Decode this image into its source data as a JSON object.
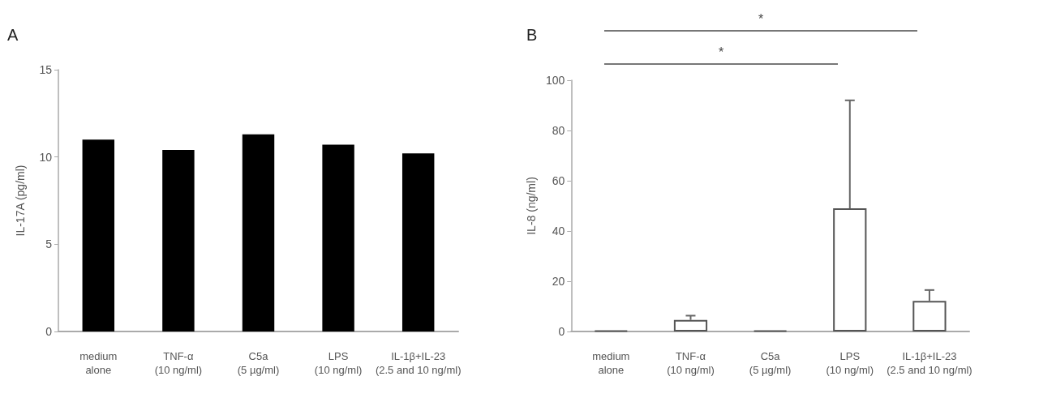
{
  "chart_data": [
    {
      "type": "bar",
      "title": "A",
      "ylabel": "IL-17A (pg/ml)",
      "categories": [
        "medium\nalone",
        "TNF-α\n(10 ng/ml)",
        "C5a\n(5 µg/ml)",
        "LPS\n(10 ng/ml)",
        "IL-1β+IL-23\n(2.5 and 10 ng/ml)"
      ],
      "values": [
        11.0,
        10.4,
        11.3,
        10.7,
        10.2
      ],
      "color": "#000000",
      "ylim": [
        0,
        15
      ],
      "yticks": [
        0,
        5,
        10,
        15
      ],
      "grid": false
    },
    {
      "type": "bar",
      "title": "B",
      "ylabel": "IL-8 (ng/ml)",
      "categories": [
        "medium\nalone",
        "TNF-α\n(10 ng/ml)",
        "C5a\n(5 µg/ml)",
        "LPS\n(10 ng/ml)",
        "IL-1β+IL-23\n(2.5 and 10 ng/ml)"
      ],
      "values": [
        0.4,
        4.6,
        0.4,
        49,
        12.2
      ],
      "color": "#555555",
      "errors": [
        null,
        [
          4.6,
          6.3
        ],
        null,
        [
          49,
          92
        ],
        [
          12.2,
          16.5
        ]
      ],
      "ylim": [
        0,
        100
      ],
      "yticks": [
        0,
        20,
        40,
        60,
        80,
        100
      ],
      "grid": false,
      "annotations": [
        "*",
        "*"
      ]
    }
  ]
}
